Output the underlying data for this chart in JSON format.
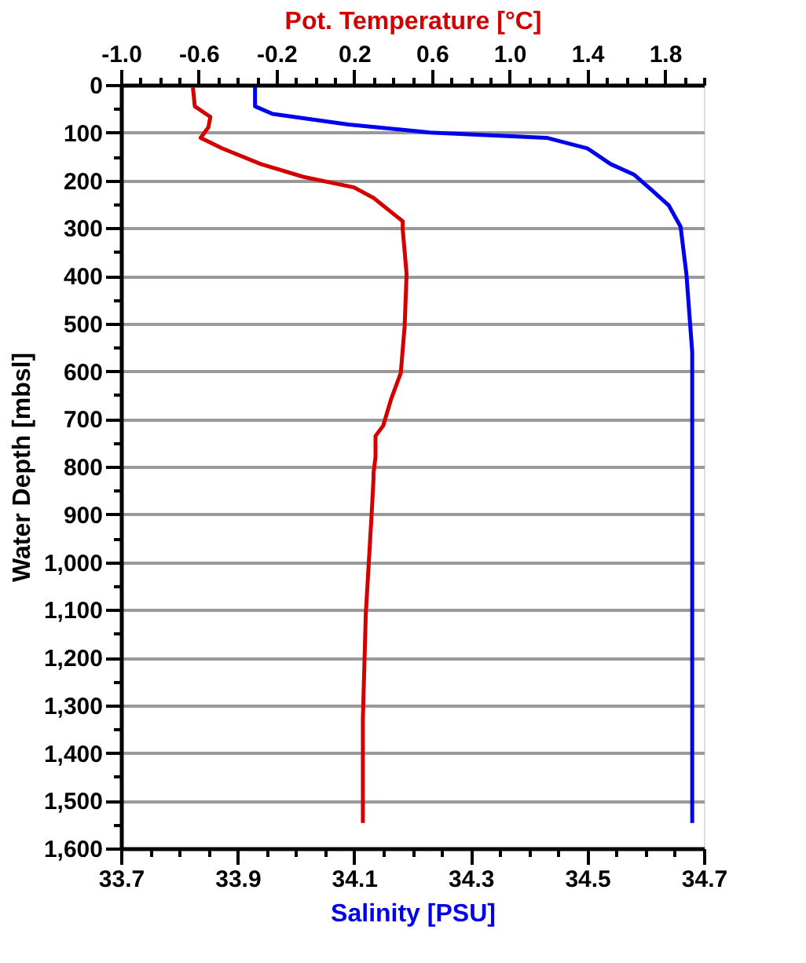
{
  "chart_data": {
    "type": "line",
    "xlabel": "Salinity [PSU]",
    "x2label": "Pot. Temperature [°C]",
    "ylabel": "Water Depth [mbsl]",
    "xlim": [
      33.7,
      34.7
    ],
    "xticks": [
      33.7,
      {
        "value": 33.75,
        "label": null
      },
      {
        "value": 33.8,
        "label": null
      },
      {
        "value": 33.85,
        "label": null
      },
      33.9,
      {
        "value": 33.95,
        "label": null
      },
      {
        "value": 34.0,
        "label": null
      },
      {
        "value": 34.05,
        "label": null
      },
      34.1,
      {
        "value": 34.15,
        "label": null
      },
      {
        "value": 34.2,
        "label": null
      },
      {
        "value": 34.25,
        "label": null
      },
      34.3,
      {
        "value": 34.35,
        "label": null
      },
      {
        "value": 34.4,
        "label": null
      },
      {
        "value": 34.45,
        "label": null
      },
      34.5,
      {
        "value": 34.55,
        "label": null
      },
      {
        "value": 34.6,
        "label": null
      },
      {
        "value": 34.65,
        "label": null
      },
      34.7
    ],
    "x2lim": [
      -1.0,
      2.0
    ],
    "x2ticks": [
      {
        "value": -1.0,
        "label": "-1.0"
      },
      {
        "value": -0.9,
        "label": null
      },
      {
        "value": -0.8,
        "label": null
      },
      {
        "value": -0.7,
        "label": null
      },
      -0.6,
      {
        "value": -0.5,
        "label": null
      },
      {
        "value": -0.4,
        "label": null
      },
      {
        "value": -0.3,
        "label": null
      },
      -0.2,
      {
        "value": -0.1,
        "label": null
      },
      {
        "value": 0.0,
        "label": null
      },
      {
        "value": 0.1,
        "label": null
      },
      0.2,
      {
        "value": 0.3,
        "label": null
      },
      {
        "value": 0.4,
        "label": null
      },
      {
        "value": 0.5,
        "label": null
      },
      0.6,
      {
        "value": 0.7,
        "label": null
      },
      {
        "value": 0.8,
        "label": null
      },
      {
        "value": 0.9,
        "label": null
      },
      {
        "value": 1.0,
        "label": "1.0"
      },
      {
        "value": 1.1,
        "label": null
      },
      {
        "value": 1.2,
        "label": null
      },
      {
        "value": 1.3,
        "label": null
      },
      1.4,
      {
        "value": 1.5,
        "label": null
      },
      {
        "value": 1.6,
        "label": null
      },
      {
        "value": 1.7,
        "label": null
      },
      1.8,
      {
        "value": 1.9,
        "label": null
      },
      {
        "value": 2.0,
        "label": null
      }
    ],
    "ylim": [
      1600,
      0
    ],
    "yticks": [
      0,
      {
        "value": 50,
        "label": null
      },
      100,
      {
        "value": 150,
        "label": null
      },
      200,
      {
        "value": 250,
        "label": null
      },
      300,
      {
        "value": 350,
        "label": null
      },
      400,
      {
        "value": 450,
        "label": null
      },
      500,
      {
        "value": 550,
        "label": null
      },
      600,
      {
        "value": 650,
        "label": null
      },
      700,
      {
        "value": 750,
        "label": null
      },
      800,
      {
        "value": 850,
        "label": null
      },
      900,
      {
        "value": 950,
        "label": null
      },
      {
        "value": 1000,
        "label": "1,000"
      },
      {
        "value": 1050,
        "label": null
      },
      {
        "value": 1100,
        "label": "1,100"
      },
      {
        "value": 1150,
        "label": null
      },
      {
        "value": 1200,
        "label": "1,200"
      },
      {
        "value": 1250,
        "label": null
      },
      {
        "value": 1300,
        "label": "1,300"
      },
      {
        "value": 1350,
        "label": null
      },
      {
        "value": 1400,
        "label": "1,400"
      },
      {
        "value": 1450,
        "label": null
      },
      {
        "value": 1500,
        "label": "1,500"
      },
      {
        "value": 1550,
        "label": null
      },
      {
        "value": 1600,
        "label": "1,600"
      }
    ],
    "grid": "y",
    "marker": "none",
    "line_style": "solid",
    "series": [
      {
        "color": "#d40000",
        "axis": "x2",
        "x": [
          -0.63,
          -0.62,
          -0.54,
          -0.55,
          -0.59,
          -0.48,
          -0.28,
          -0.06,
          0.2,
          0.3,
          0.45,
          0.45,
          0.47,
          0.46,
          0.44,
          0.39,
          0.35,
          0.31,
          0.31,
          0.3,
          0.3,
          0.29,
          0.26,
          0.245,
          0.245
        ],
        "values": [
          5,
          45,
          67,
          89,
          111,
          133,
          166,
          193,
          215,
          237,
          286,
          303,
          396,
          506,
          604,
          659,
          714,
          736,
          780,
          813,
          824,
          900,
          1109,
          1328,
          1547
        ]
      },
      {
        "color": "#0000ee",
        "x": [
          33.93,
          33.93,
          33.96,
          34.09,
          34.23,
          34.43,
          34.5,
          34.54,
          34.58,
          34.61,
          34.64,
          34.66,
          34.67,
          34.68,
          34.68,
          34.68,
          34.68
        ],
        "values": [
          5,
          45,
          61,
          83,
          100,
          111,
          133,
          166,
          188,
          220,
          253,
          297,
          396,
          560,
          670,
          824,
          1547
        ]
      }
    ]
  }
}
